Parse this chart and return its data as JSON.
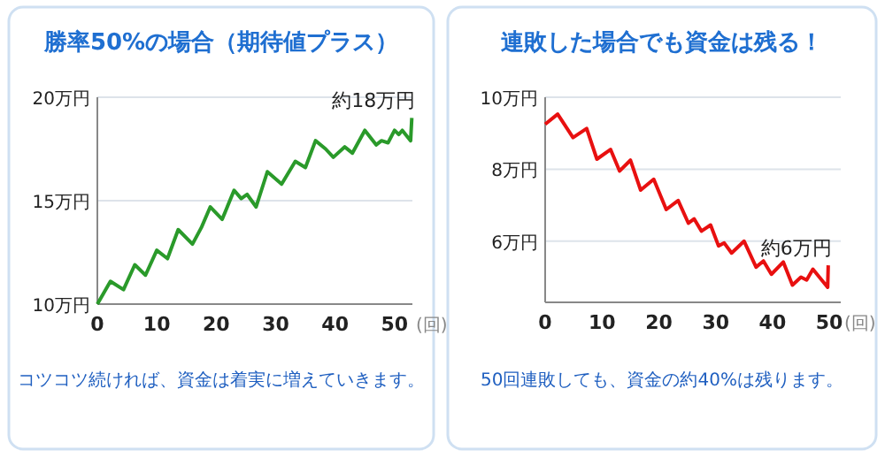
{
  "chart_data": [
    {
      "type": "line",
      "title": "勝率50%の場合（期待値プラス）",
      "xlabel": "(回)",
      "x": [
        0,
        2.2,
        4.4,
        6.3,
        8.1,
        10,
        11.8,
        13.6,
        16,
        17.5,
        19,
        21,
        23,
        24.2,
        25.2,
        26.7,
        28.6,
        31,
        33.3,
        35,
        36.7,
        38.4,
        39.7,
        41.6,
        42.9,
        45,
        46.9,
        47.8,
        48.9,
        50,
        50.7,
        51.3,
        52.7,
        52.9
      ],
      "series": [
        {
          "color": "#2a9a2a",
          "values": [
            10.0,
            11.1,
            10.7,
            11.9,
            11.4,
            12.6,
            12.2,
            13.6,
            12.9,
            13.7,
            14.7,
            14.1,
            15.5,
            15.1,
            15.3,
            14.7,
            16.4,
            15.8,
            16.9,
            16.6,
            17.9,
            17.5,
            17.1,
            17.6,
            17.3,
            18.4,
            17.7,
            17.9,
            17.8,
            18.4,
            18.2,
            18.4,
            17.9,
            19.0
          ]
        }
      ],
      "xlim": [
        0,
        53
      ],
      "xticks": [
        0,
        10,
        20,
        30,
        40,
        50
      ],
      "ylim": [
        10,
        20
      ],
      "yticks": [
        {
          "value": 10,
          "label": "10万円"
        },
        {
          "value": 15,
          "label": "15万円"
        },
        {
          "value": 20,
          "label": "20万円"
        }
      ],
      "grid": "y",
      "annotations": [
        {
          "text": "約18万円",
          "x": 52.9,
          "y": 19.0
        },
        "コツコツ続ければ、資金は着実に増えていきます。"
      ]
    },
    {
      "type": "line",
      "title": "連敗した場合でも資金は残る！",
      "xlabel": "(回)",
      "x": [
        0,
        2.2,
        4.9,
        7.3,
        9.1,
        11.5,
        13.1,
        15,
        16.8,
        19.1,
        21.3,
        23.4,
        25.2,
        26.2,
        27.5,
        29.1,
        30.5,
        31.5,
        32.8,
        35,
        37.1,
        38.4,
        39.8,
        41.9,
        43.5,
        45,
        46,
        47.1,
        49.7,
        49.8
      ],
      "series": [
        {
          "color": "#e81010",
          "values": [
            9.25,
            9.53,
            8.88,
            9.13,
            8.28,
            8.55,
            7.95,
            8.25,
            7.42,
            7.72,
            6.88,
            7.13,
            6.5,
            6.62,
            6.28,
            6.45,
            5.87,
            5.95,
            5.67,
            6.0,
            5.28,
            5.45,
            5.08,
            5.42,
            4.78,
            5.0,
            4.92,
            5.22,
            4.72,
            5.33
          ]
        }
      ],
      "xlim": [
        0,
        52
      ],
      "xticks": [
        0,
        10,
        20,
        30,
        40,
        50
      ],
      "ylim": [
        4.3,
        10
      ],
      "yticks": [
        {
          "value": 6,
          "label": "6万円"
        },
        {
          "value": 8,
          "label": "8万円"
        },
        {
          "value": 10,
          "label": "10万円"
        }
      ],
      "grid": "y",
      "annotations": [
        {
          "text": "約6万円",
          "x": 49.8,
          "y": 5.33
        },
        "50回連敗しても、資金の約40%は残ります。"
      ]
    }
  ]
}
